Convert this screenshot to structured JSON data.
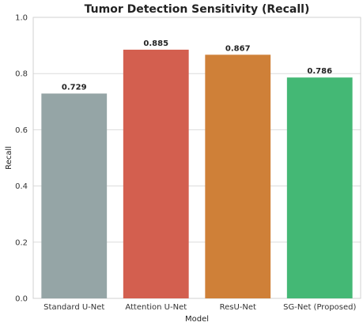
{
  "chart_data": {
    "type": "bar",
    "title": "Tumor Detection Sensitivity (Recall)",
    "xlabel": "Model",
    "ylabel": "Recall",
    "categories": [
      "Standard U-Net",
      "Attention U-Net",
      "ResU-Net",
      "SG-Net (Proposed)"
    ],
    "values": [
      0.729,
      0.885,
      0.867,
      0.786
    ],
    "value_labels": [
      "0.729",
      "0.885",
      "0.867",
      "0.786"
    ],
    "colors": [
      "#95a5a6",
      "#d35f4f",
      "#cf8038",
      "#44b875"
    ],
    "ylim": [
      0,
      1.0
    ],
    "yticks": [
      0.0,
      0.2,
      0.4,
      0.6,
      0.8,
      1.0
    ],
    "ytick_labels": [
      "0.0",
      "0.2",
      "0.4",
      "0.6",
      "0.8",
      "1.0"
    ],
    "grid": true,
    "legend": "none"
  }
}
